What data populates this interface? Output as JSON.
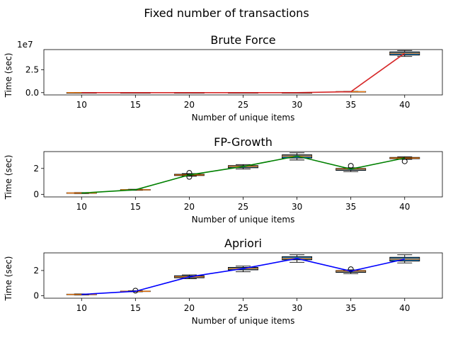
{
  "figure": {
    "title": "Fixed number of transactions"
  },
  "chart_data": [
    {
      "type": "box-line",
      "title": "Brute Force",
      "xlabel": "Number of unique items",
      "ylabel": "Time (sec)",
      "offset_text": "1e7",
      "x": [
        10,
        15,
        20,
        25,
        30,
        35,
        40
      ],
      "x_ticks": [
        "10",
        "15",
        "20",
        "25",
        "30",
        "35",
        "40"
      ],
      "y_ticks": [
        0,
        2.5
      ],
      "y_tick_labels": [
        "0.0",
        "2.5"
      ],
      "ylim": [
        -0.25,
        4.7
      ],
      "line_color": "#d62728",
      "line_values": [
        0,
        0,
        0,
        0,
        0,
        0.1,
        4.3
      ],
      "boxes": [
        {
          "q1": 0,
          "median": 0,
          "q3": 0,
          "whislo": 0,
          "whishi": 0,
          "fliers": []
        },
        {
          "q1": 0,
          "median": 0,
          "q3": 0,
          "whislo": 0,
          "whishi": 0,
          "fliers": []
        },
        {
          "q1": 0,
          "median": 0,
          "q3": 0,
          "whislo": 0,
          "whishi": 0,
          "fliers": []
        },
        {
          "q1": 0,
          "median": 0,
          "q3": 0,
          "whislo": 0,
          "whishi": 0,
          "fliers": []
        },
        {
          "q1": 0,
          "median": 0,
          "q3": 0,
          "whislo": 0,
          "whishi": 0,
          "fliers": []
        },
        {
          "q1": 0.08,
          "median": 0.1,
          "q3": 0.12,
          "whislo": 0.06,
          "whishi": 0.14,
          "fliers": []
        },
        {
          "q1": 4.1,
          "median": 4.3,
          "q3": 4.45,
          "whislo": 3.95,
          "whishi": 4.6,
          "fliers": []
        }
      ]
    },
    {
      "type": "box-line",
      "title": "FP-Growth",
      "xlabel": "Number of unique items",
      "ylabel": "Time (sec)",
      "x": [
        10,
        15,
        20,
        25,
        30,
        35,
        40
      ],
      "x_ticks": [
        "10",
        "15",
        "20",
        "25",
        "30",
        "35",
        "40"
      ],
      "y_ticks": [
        0,
        2
      ],
      "y_tick_labels": [
        "0",
        "2"
      ],
      "ylim": [
        -0.2,
        3.3
      ],
      "line_color": "#008000",
      "line_values": [
        0.1,
        0.35,
        1.5,
        2.15,
        2.95,
        1.95,
        2.8
      ],
      "boxes": [
        {
          "q1": 0.08,
          "median": 0.1,
          "q3": 0.12,
          "whislo": 0.06,
          "whishi": 0.14,
          "fliers": []
        },
        {
          "q1": 0.33,
          "median": 0.35,
          "q3": 0.37,
          "whislo": 0.31,
          "whishi": 0.39,
          "fliers": []
        },
        {
          "q1": 1.45,
          "median": 1.5,
          "q3": 1.55,
          "whislo": 1.4,
          "whishi": 1.6,
          "fliers": [
            1.35,
            1.65
          ]
        },
        {
          "q1": 2.05,
          "median": 2.15,
          "q3": 2.22,
          "whislo": 1.95,
          "whishi": 2.3,
          "fliers": []
        },
        {
          "q1": 2.8,
          "median": 2.95,
          "q3": 3.05,
          "whislo": 2.65,
          "whishi": 3.2,
          "fliers": []
        },
        {
          "q1": 1.85,
          "median": 1.95,
          "q3": 2.0,
          "whislo": 1.75,
          "whishi": 2.05,
          "fliers": [
            2.2
          ]
        },
        {
          "q1": 2.75,
          "median": 2.8,
          "q3": 2.85,
          "whislo": 2.7,
          "whishi": 2.9,
          "fliers": [
            2.55
          ]
        }
      ]
    },
    {
      "type": "box-line",
      "title": "Apriori",
      "xlabel": "Number of unique items",
      "ylabel": "Time (sec)",
      "x": [
        10,
        15,
        20,
        25,
        30,
        35,
        40
      ],
      "x_ticks": [
        "10",
        "15",
        "20",
        "25",
        "30",
        "35",
        "40"
      ],
      "y_ticks": [
        0,
        2
      ],
      "y_tick_labels": [
        "0",
        "2"
      ],
      "ylim": [
        -0.2,
        3.4
      ],
      "line_color": "#0000ff",
      "line_values": [
        0.1,
        0.35,
        1.5,
        2.15,
        2.95,
        1.95,
        2.9
      ],
      "boxes": [
        {
          "q1": 0.08,
          "median": 0.1,
          "q3": 0.12,
          "whislo": 0.06,
          "whishi": 0.14,
          "fliers": []
        },
        {
          "q1": 0.33,
          "median": 0.35,
          "q3": 0.37,
          "whislo": 0.31,
          "whishi": 0.39,
          "fliers": [
            0.4
          ]
        },
        {
          "q1": 1.42,
          "median": 1.5,
          "q3": 1.58,
          "whislo": 1.35,
          "whishi": 1.65,
          "fliers": []
        },
        {
          "q1": 2.05,
          "median": 2.15,
          "q3": 2.25,
          "whislo": 1.9,
          "whishi": 2.35,
          "fliers": []
        },
        {
          "q1": 2.85,
          "median": 2.95,
          "q3": 3.1,
          "whislo": 2.65,
          "whishi": 3.25,
          "fliers": []
        },
        {
          "q1": 1.85,
          "median": 1.95,
          "q3": 2.0,
          "whislo": 1.75,
          "whishi": 2.05,
          "fliers": [
            2.1
          ]
        },
        {
          "q1": 2.75,
          "median": 2.9,
          "q3": 3.05,
          "whislo": 2.6,
          "whishi": 3.25,
          "fliers": []
        }
      ]
    }
  ]
}
